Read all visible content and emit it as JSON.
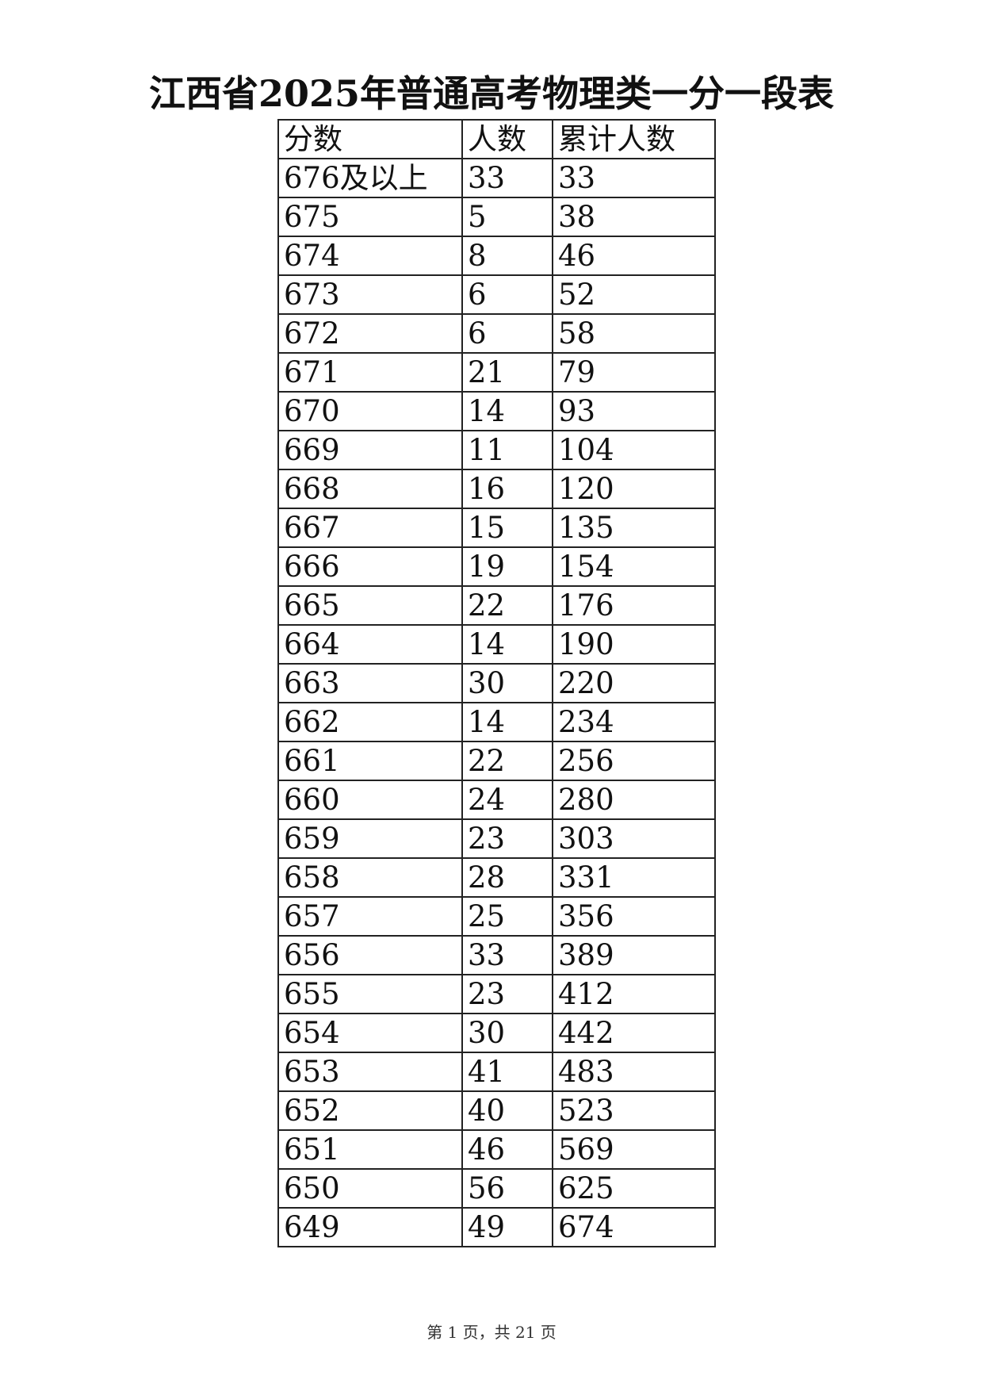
{
  "title": "江西省2025年普通高考物理类一分一段表",
  "table": {
    "headers": [
      "分数",
      "人数",
      "累计人数"
    ],
    "rows": [
      [
        "676及以上",
        "33",
        "33"
      ],
      [
        "675",
        "5",
        "38"
      ],
      [
        "674",
        "8",
        "46"
      ],
      [
        "673",
        "6",
        "52"
      ],
      [
        "672",
        "6",
        "58"
      ],
      [
        "671",
        "21",
        "79"
      ],
      [
        "670",
        "14",
        "93"
      ],
      [
        "669",
        "11",
        "104"
      ],
      [
        "668",
        "16",
        "120"
      ],
      [
        "667",
        "15",
        "135"
      ],
      [
        "666",
        "19",
        "154"
      ],
      [
        "665",
        "22",
        "176"
      ],
      [
        "664",
        "14",
        "190"
      ],
      [
        "663",
        "30",
        "220"
      ],
      [
        "662",
        "14",
        "234"
      ],
      [
        "661",
        "22",
        "256"
      ],
      [
        "660",
        "24",
        "280"
      ],
      [
        "659",
        "23",
        "303"
      ],
      [
        "658",
        "28",
        "331"
      ],
      [
        "657",
        "25",
        "356"
      ],
      [
        "656",
        "33",
        "389"
      ],
      [
        "655",
        "23",
        "412"
      ],
      [
        "654",
        "30",
        "442"
      ],
      [
        "653",
        "41",
        "483"
      ],
      [
        "652",
        "40",
        "523"
      ],
      [
        "651",
        "46",
        "569"
      ],
      [
        "650",
        "56",
        "625"
      ],
      [
        "649",
        "49",
        "674"
      ]
    ]
  },
  "footer": "第 1 页，共 21 页"
}
